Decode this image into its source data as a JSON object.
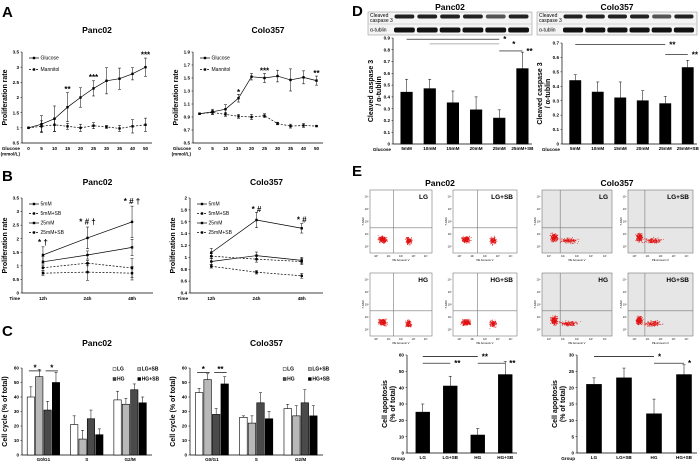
{
  "panels": {
    "A": "A",
    "B": "B",
    "C": "C",
    "D": "D",
    "E": "E"
  },
  "blots": {
    "band1": "Cleaved caspase 3",
    "band2": "α-tublin",
    "panc_title": "Panc02",
    "colo_title": "Colo357"
  },
  "flow": {
    "panc_title": "Panc02",
    "colo_title": "Colo357",
    "xaxis": "PE Annexin V",
    "yaxis": "7-AAD",
    "ticks": [
      "10⁰",
      "10¹",
      "10²",
      "10³",
      "10⁴"
    ],
    "plots": [
      {
        "label": "LG",
        "cell": "Panc02"
      },
      {
        "label": "LG+SB",
        "cell": "Panc02"
      },
      {
        "label": "LG",
        "cell": "Colo357"
      },
      {
        "label": "LG+SB",
        "cell": "Colo357"
      },
      {
        "label": "HG",
        "cell": "Panc02"
      },
      {
        "label": "HG+SB",
        "cell": "Panc02"
      },
      {
        "label": "HG",
        "cell": "Colo357"
      },
      {
        "label": "HG+SB",
        "cell": "Colo357"
      }
    ],
    "colors": {
      "dots": "#e01010",
      "shade": "#e6e6e6"
    }
  },
  "chart_data": [
    {
      "id": "A1",
      "type": "line",
      "title": "Panc02",
      "ylabel": "Proliferation rate",
      "xlabel": [
        "Glucose",
        "(mmol/L)"
      ],
      "categories": [
        "0",
        "5",
        "10",
        "15",
        "20",
        "25",
        "30",
        "35",
        "40",
        "50"
      ],
      "ylim": [
        0.5,
        3.5
      ],
      "ystep": 0.5,
      "ydec": 1,
      "series": [
        {
          "name": "Glucose",
          "dashed": false,
          "values": [
            1,
            1.12,
            1.3,
            1.68,
            2.0,
            2.3,
            2.55,
            2.62,
            2.78,
            3.0
          ],
          "errors": [
            0,
            0.28,
            0.42,
            0.48,
            0.32,
            0.25,
            0.43,
            0.35,
            0.2,
            0.3
          ]
        },
        {
          "name": "Mannitol",
          "dashed": true,
          "values": [
            1,
            1.05,
            1.1,
            1.05,
            1.0,
            1.07,
            1.03,
            0.98,
            1.05,
            1.1
          ],
          "errors": [
            0,
            0.18,
            0.22,
            0.1,
            0.12,
            0.1,
            0.05,
            0.1,
            0.22,
            0.22
          ]
        }
      ],
      "annotations": [
        {
          "at": 3,
          "y": 2.25,
          "text": "**"
        },
        {
          "at": 5,
          "y": 2.65,
          "text": "***"
        },
        {
          "at": 9,
          "y": 3.38,
          "text": "***"
        }
      ]
    },
    {
      "id": "A2",
      "type": "line",
      "title": "Colo357",
      "ylabel": "Proliferation rate",
      "xlabel": [
        "Glucose",
        "(mmol/L)"
      ],
      "categories": [
        "0",
        "5",
        "10",
        "15",
        "20",
        "25",
        "30",
        "35",
        "40",
        "50"
      ],
      "ylim": [
        0.5,
        1.9
      ],
      "ystep": 0.2,
      "ydec": 1,
      "series": [
        {
          "name": "Glucose",
          "dashed": false,
          "values": [
            0.95,
            0.98,
            1.02,
            1.19,
            1.52,
            1.5,
            1.53,
            1.47,
            1.51,
            1.46
          ],
          "errors": [
            0,
            0.04,
            0.07,
            0.06,
            0.05,
            0.07,
            0.09,
            0.17,
            0.1,
            0.07
          ]
        },
        {
          "name": "Mannitol",
          "dashed": true,
          "values": [
            0.95,
            0.97,
            0.94,
            0.91,
            0.9,
            0.92,
            0.8,
            0.76,
            0.77,
            0.76
          ],
          "errors": [
            0,
            0.03,
            0.03,
            0.03,
            0.04,
            0.03,
            0.02,
            0.03,
            0.03,
            0.01
          ]
        }
      ],
      "annotations": [
        {
          "at": 3,
          "y": 1.27,
          "text": "*"
        },
        {
          "at": 5,
          "y": 1.6,
          "text": "***"
        },
        {
          "at": 9,
          "y": 1.56,
          "text": "**"
        }
      ]
    },
    {
      "id": "B1",
      "type": "line",
      "title": "Panc02",
      "ylabel": "Proliferation rate",
      "xlabel": [
        "Time"
      ],
      "categories": [
        "12h",
        "24h",
        "48h"
      ],
      "ylim": [
        0,
        3.5
      ],
      "ystep": 0.5,
      "ydec": 1,
      "series": [
        {
          "name": "5mM",
          "dashed": false,
          "values": [
            1.15,
            1.4,
            1.68
          ],
          "errors": [
            0.2,
            0.15,
            0.3
          ]
        },
        {
          "name": "5mM+SB",
          "dashed": true,
          "values": [
            0.93,
            1.1,
            0.92
          ],
          "errors": [
            0.1,
            0.1,
            0.35
          ]
        },
        {
          "name": "25mM",
          "dashed": false,
          "values": [
            1.4,
            2.03,
            2.62
          ],
          "errors": [
            0.3,
            0.4,
            0.58
          ]
        },
        {
          "name": "25mM+SB",
          "dashed": true,
          "values": [
            0.73,
            0.77,
            0.73
          ],
          "errors": [
            0.08,
            0.3,
            0.25
          ]
        }
      ],
      "annotations": [
        {
          "at": 0,
          "y": 1.85,
          "text": "* †"
        },
        {
          "at": 1,
          "y": 2.6,
          "text": "* # †"
        },
        {
          "at": 2,
          "y": 3.35,
          "text": "* # †"
        }
      ]
    },
    {
      "id": "B2",
      "type": "line",
      "title": "Colo357",
      "ylabel": "Proliferation rate",
      "xlabel": [
        "Time"
      ],
      "categories": [
        "12h",
        "24h",
        "48h"
      ],
      "ylim": [
        0.4,
        2
      ],
      "ystep": 0.2,
      "ydec": 1,
      "series": [
        {
          "name": "5mM",
          "dashed": false,
          "values": [
            0.93,
            1.03,
            0.95
          ],
          "errors": [
            0.05,
            0.06,
            0.05
          ]
        },
        {
          "name": "5mM+SB",
          "dashed": true,
          "values": [
            1.02,
            0.97,
            0.93
          ],
          "errors": [
            0.04,
            0.05,
            0.05
          ]
        },
        {
          "name": "25mM",
          "dashed": false,
          "values": [
            1.08,
            1.63,
            1.49
          ],
          "errors": [
            0.07,
            0.13,
            0.08
          ]
        },
        {
          "name": "25mM+SB",
          "dashed": true,
          "values": [
            0.85,
            0.75,
            0.69
          ],
          "errors": [
            0.03,
            0.03,
            0.04
          ]
        }
      ],
      "annotations": [
        {
          "at": 1,
          "y": 1.8,
          "text": "* #"
        },
        {
          "at": 2,
          "y": 1.62,
          "text": "* #"
        }
      ]
    },
    {
      "id": "C1",
      "type": "bar",
      "title": "Panc02",
      "ylabel": "Cell cycle (% of total)",
      "xlabel": [],
      "categories": [
        "G0/G1",
        "S",
        "G2/M"
      ],
      "ylim": [
        0,
        60
      ],
      "ystep": 10,
      "ydec": 0,
      "series": [
        {
          "name": "LG",
          "color": "#ffffff",
          "values": [
            40,
            21,
            38
          ],
          "errors": [
            7,
            6,
            6
          ]
        },
        {
          "name": "LG+SB",
          "color": "#b8b8b8",
          "values": [
            54,
            11,
            35
          ],
          "errors": [
            5,
            6,
            4
          ]
        },
        {
          "name": "HG",
          "color": "#4a4a4a",
          "values": [
            31,
            25,
            45
          ],
          "errors": [
            6,
            6,
            4
          ]
        },
        {
          "name": "HG+SB",
          "color": "#000000",
          "values": [
            50,
            14,
            36
          ],
          "errors": [
            7,
            4,
            4
          ]
        }
      ],
      "brackets": [
        {
          "from": [
            0,
            0
          ],
          "to": [
            0,
            1
          ],
          "y": 58,
          "text": "*",
          "pos": "center"
        },
        {
          "from": [
            0,
            2
          ],
          "to": [
            0,
            3
          ],
          "y": 58,
          "text": "*",
          "pos": "center"
        }
      ]
    },
    {
      "id": "C2",
      "type": "bar",
      "title": "Colo357",
      "ylabel": "Cell cycle (% of total)",
      "xlabel": [],
      "categories": [
        "G0/G1",
        "S",
        "G2/M"
      ],
      "ylim": [
        0,
        60
      ],
      "ystep": 10,
      "ydec": 0,
      "series": [
        {
          "name": "LG",
          "color": "#ffffff",
          "values": [
            43,
            26,
            32
          ],
          "errors": [
            3,
            1,
            3
          ]
        },
        {
          "name": "LG+SB",
          "color": "#b8b8b8",
          "values": [
            52,
            22,
            27
          ],
          "errors": [
            4,
            5,
            7
          ]
        },
        {
          "name": "HG",
          "color": "#4a4a4a",
          "values": [
            28,
            36,
            36
          ],
          "errors": [
            4,
            7,
            9
          ]
        },
        {
          "name": "HG+SB",
          "color": "#000000",
          "values": [
            49,
            25,
            27
          ],
          "errors": [
            5,
            5,
            7
          ]
        }
      ],
      "brackets": [
        {
          "from": [
            0,
            0
          ],
          "to": [
            0,
            1
          ],
          "y": 57,
          "text": "*",
          "pos": "center"
        },
        {
          "from": [
            0,
            2
          ],
          "to": [
            0,
            3
          ],
          "y": 57,
          "text": "**",
          "pos": "center"
        }
      ]
    },
    {
      "id": "D1",
      "type": "bar",
      "title": "",
      "ylabel": "Cleaved caspase 3 / α-tublin",
      "xlabel": [
        "Glucose"
      ],
      "categories": [
        "5mM",
        "10mM",
        "15mM",
        "20mM",
        "25mM",
        "25mM+SB"
      ],
      "ylim": [
        0,
        0.9
      ],
      "ystep": 0.1,
      "ydec": 1,
      "series": [
        {
          "name": "ratio",
          "color": "#000000",
          "values": [
            0.44,
            0.47,
            0.35,
            0.29,
            0.22,
            0.64
          ],
          "errors": [
            0.11,
            0.08,
            0.1,
            0.11,
            0.07,
            0.14
          ]
        }
      ],
      "brackets": [
        {
          "from": [
            0,
            0
          ],
          "to": [
            4,
            0
          ],
          "y": 0.89,
          "text": "*",
          "pos": "end"
        },
        {
          "from": [
            1,
            0
          ],
          "to": [
            4,
            0
          ],
          "y": 0.85,
          "text": "*",
          "pos": "end",
          "color": "#999999"
        },
        {
          "from": [
            4,
            0
          ],
          "to": [
            5,
            0
          ],
          "y": 0.79,
          "text": "**",
          "pos": "end"
        }
      ]
    },
    {
      "id": "D2",
      "type": "bar",
      "title": "",
      "ylabel": "Cleaved caspase 3 / α-tublin",
      "xlabel": [
        "Glucose"
      ],
      "categories": [
        "5mM",
        "10mM",
        "15mM",
        "20mM",
        "25mM",
        "25mM+SB"
      ],
      "ylim": [
        0,
        0.7
      ],
      "ystep": 0.1,
      "ydec": 1,
      "series": [
        {
          "name": "ratio",
          "color": "#000000",
          "values": [
            0.44,
            0.36,
            0.32,
            0.3,
            0.28,
            0.53
          ],
          "errors": [
            0.04,
            0.07,
            0.11,
            0.07,
            0.05,
            0.05
          ]
        }
      ],
      "brackets": [
        {
          "from": [
            0,
            0
          ],
          "to": [
            4,
            0
          ],
          "y": 0.69,
          "text": "**",
          "pos": "end"
        },
        {
          "from": [
            4,
            0
          ],
          "to": [
            5,
            0
          ],
          "y": 0.62,
          "text": "**",
          "pos": "end"
        }
      ]
    },
    {
      "id": "E1",
      "type": "bar",
      "title": "",
      "ylabel": "Cell apoptosis (% of total)",
      "xlabel": [
        "Group"
      ],
      "categories": [
        "LG",
        "LG+SB",
        "HG",
        "HG+SB"
      ],
      "ylim": [
        0,
        60
      ],
      "ystep": 10,
      "ydec": 0,
      "series": [
        {
          "name": "apoptosis",
          "color": "#000000",
          "values": [
            25,
            41,
            11,
            48
          ],
          "errors": [
            5,
            6,
            4,
            8
          ]
        }
      ],
      "brackets": [
        {
          "from": [
            0,
            0
          ],
          "to": [
            2,
            0
          ],
          "y": 59,
          "text": "**",
          "pos": "end"
        },
        {
          "from": [
            0,
            0
          ],
          "to": [
            1,
            0
          ],
          "y": 55,
          "text": "**",
          "pos": "end"
        },
        {
          "from": [
            2,
            0
          ],
          "to": [
            3,
            0
          ],
          "y": 55,
          "text": "**",
          "pos": "end"
        }
      ]
    },
    {
      "id": "E2",
      "type": "bar",
      "title": "",
      "ylabel": "Cell apoptosis (% of total)",
      "xlabel": [
        "Group"
      ],
      "categories": [
        "LG",
        "LG+SB",
        "HG",
        "HG+SB"
      ],
      "ylim": [
        0,
        30
      ],
      "ystep": 5,
      "ydec": 0,
      "series": [
        {
          "name": "apoptosis",
          "color": "#000000",
          "values": [
            21,
            23,
            12,
            24
          ],
          "errors": [
            2,
            3,
            4.5,
            3
          ]
        }
      ],
      "brackets": [
        {
          "from": [
            0,
            0
          ],
          "to": [
            2,
            0
          ],
          "y": 29.5,
          "text": "*",
          "pos": "end"
        },
        {
          "from": [
            2,
            0
          ],
          "to": [
            3,
            0
          ],
          "y": 27.5,
          "text": "*",
          "pos": "end"
        }
      ]
    }
  ]
}
